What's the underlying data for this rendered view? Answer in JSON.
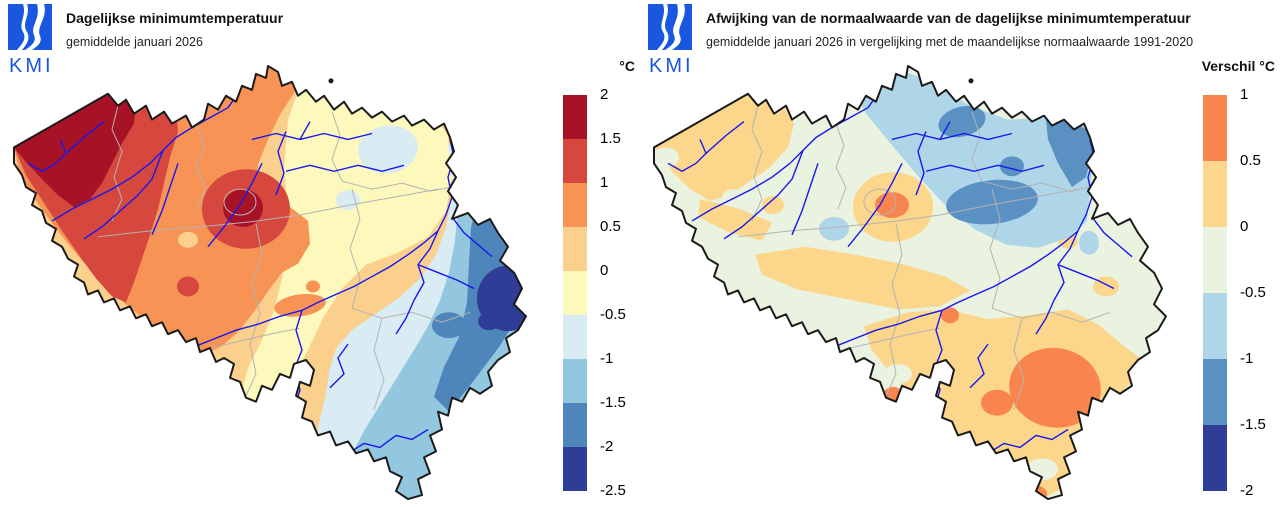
{
  "brand": {
    "logo_text": "KMI",
    "logo_color": "#1A57DF"
  },
  "map_style": {
    "country_border": "#1A1A1A",
    "province_border": "#B3B3B3",
    "river": "#1717F0",
    "background": "#FFFFFF"
  },
  "left_panel": {
    "title": "Dagelijkse minimumtemperatuur",
    "subtitle": "gemiddelde januari 2026",
    "legend": {
      "unit_label": "°C",
      "ticks": [
        "2",
        "1.5",
        "1",
        "0.5",
        "0",
        "-0.5",
        "-1",
        "-1.5",
        "-2",
        "-2.5"
      ],
      "colors": [
        "#A81226",
        "#D6483E",
        "#F89356",
        "#FBD08C",
        "#FDF8BC",
        "#D9EBF3",
        "#93C6DF",
        "#4E86BC",
        "#2F3D96"
      ]
    },
    "palette": {
      "darkred": "#A81226",
      "red": "#D6483E",
      "orange": "#F89356",
      "sand": "#FBD08C",
      "yellow": "#FDF8BC",
      "paleblue": "#D9EBF3",
      "lightblue": "#93C6DF",
      "medblue": "#4E86BC",
      "navy": "#2F3D96"
    }
  },
  "right_panel": {
    "title": "Afwijking van de normaalwaarde van de dagelijkse minimumtemperatuur",
    "subtitle": "gemiddelde januari 2026 in vergelijking met de maandelijkse normaalwaarde 1991-2020",
    "legend": {
      "unit_label": "Verschil °C",
      "ticks": [
        "1",
        "0.5",
        "0",
        "-0.5",
        "-1",
        "-1.5",
        "-2"
      ],
      "colors": [
        "#F8854E",
        "#FBD68B",
        "#EAF2E0",
        "#AED6E8",
        "#5B90C2",
        "#2F3D96"
      ]
    },
    "palette": {
      "orange": "#F8854E",
      "sand": "#FBD68B",
      "palegreen": "#EAF2E0",
      "lightblue": "#AED6E8",
      "medblue": "#5B90C2",
      "navy": "#2F3D96"
    }
  }
}
